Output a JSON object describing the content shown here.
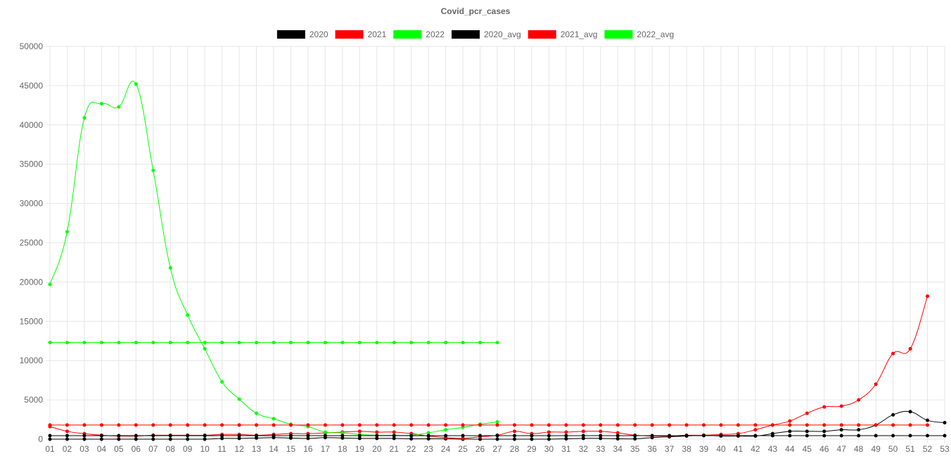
{
  "chart_data": {
    "type": "line",
    "title": "Covid_pcr_cases",
    "xlabel": "",
    "ylabel": "",
    "ylim": [
      0,
      50000
    ],
    "y_ticks": [
      0,
      5000,
      10000,
      15000,
      20000,
      25000,
      30000,
      35000,
      40000,
      45000,
      50000
    ],
    "grid": true,
    "legend_position": "top",
    "categories": [
      "01",
      "02",
      "03",
      "04",
      "05",
      "06",
      "07",
      "08",
      "09",
      "10",
      "11",
      "12",
      "13",
      "14",
      "15",
      "16",
      "17",
      "18",
      "19",
      "20",
      "21",
      "22",
      "23",
      "24",
      "25",
      "26",
      "27",
      "28",
      "29",
      "30",
      "31",
      "32",
      "33",
      "34",
      "35",
      "36",
      "37",
      "38",
      "39",
      "40",
      "41",
      "42",
      "43",
      "44",
      "45",
      "46",
      "47",
      "48",
      "49",
      "50",
      "51",
      "52",
      "53"
    ],
    "series": [
      {
        "name": "2020",
        "color": "#000000",
        "values": [
          0,
          0,
          0,
          0,
          0,
          0,
          0,
          0,
          0,
          0,
          100,
          100,
          150,
          200,
          150,
          100,
          200,
          150,
          100,
          100,
          100,
          50,
          50,
          50,
          0,
          0,
          0,
          0,
          0,
          0,
          50,
          100,
          100,
          50,
          50,
          200,
          300,
          400,
          500,
          400,
          400,
          400,
          700,
          1000,
          1000,
          1000,
          1200,
          1200,
          1800,
          3100,
          3500,
          2400,
          2100
        ]
      },
      {
        "name": "2021",
        "color": "#ff0000",
        "values": [
          1600,
          1000,
          700,
          500,
          400,
          400,
          500,
          500,
          500,
          500,
          600,
          600,
          500,
          600,
          700,
          700,
          800,
          900,
          1000,
          900,
          900,
          700,
          400,
          200,
          100,
          300,
          500,
          1000,
          700,
          900,
          900,
          1000,
          1000,
          800,
          500,
          400,
          400,
          500,
          500,
          600,
          700,
          1200,
          1800,
          2300,
          3300,
          4100,
          4200,
          5000,
          7000,
          10900,
          11500,
          18200,
          null
        ]
      },
      {
        "name": "2022",
        "color": "#00ff00",
        "values": [
          19700,
          26400,
          40900,
          42700,
          42300,
          45200,
          34200,
          21800,
          15800,
          11500,
          7300,
          5100,
          3300,
          2600,
          1900,
          1600,
          900,
          800,
          600,
          500,
          500,
          500,
          800,
          1200,
          1500,
          1900,
          2200,
          null,
          null,
          null,
          null,
          null,
          null,
          null,
          null,
          null,
          null,
          null,
          null,
          null,
          null,
          null,
          null,
          null,
          null,
          null,
          null,
          null,
          null,
          null,
          null,
          null,
          null
        ]
      },
      {
        "name": "2020_avg",
        "color": "#000000",
        "values": [
          450,
          450,
          450,
          450,
          450,
          450,
          450,
          450,
          450,
          450,
          450,
          450,
          450,
          450,
          450,
          450,
          450,
          450,
          450,
          450,
          450,
          450,
          450,
          450,
          450,
          450,
          450,
          450,
          450,
          450,
          450,
          450,
          450,
          450,
          450,
          450,
          450,
          450,
          450,
          450,
          450,
          450,
          450,
          450,
          450,
          450,
          450,
          450,
          450,
          450,
          450,
          450,
          450
        ]
      },
      {
        "name": "2021_avg",
        "color": "#ff0000",
        "values": [
          1800,
          1800,
          1800,
          1800,
          1800,
          1800,
          1800,
          1800,
          1800,
          1800,
          1800,
          1800,
          1800,
          1800,
          1800,
          1800,
          1800,
          1800,
          1800,
          1800,
          1800,
          1800,
          1800,
          1800,
          1800,
          1800,
          1800,
          1800,
          1800,
          1800,
          1800,
          1800,
          1800,
          1800,
          1800,
          1800,
          1800,
          1800,
          1800,
          1800,
          1800,
          1800,
          1800,
          1800,
          1800,
          1800,
          1800,
          1800,
          1800,
          1800,
          1800,
          1800,
          null
        ]
      },
      {
        "name": "2022_avg",
        "color": "#00ff00",
        "values": [
          12300,
          12300,
          12300,
          12300,
          12300,
          12300,
          12300,
          12300,
          12300,
          12300,
          12300,
          12300,
          12300,
          12300,
          12300,
          12300,
          12300,
          12300,
          12300,
          12300,
          12300,
          12300,
          12300,
          12300,
          12300,
          12300,
          12300,
          null,
          null,
          null,
          null,
          null,
          null,
          null,
          null,
          null,
          null,
          null,
          null,
          null,
          null,
          null,
          null,
          null,
          null,
          null,
          null,
          null,
          null,
          null,
          null,
          null,
          null
        ]
      }
    ]
  }
}
